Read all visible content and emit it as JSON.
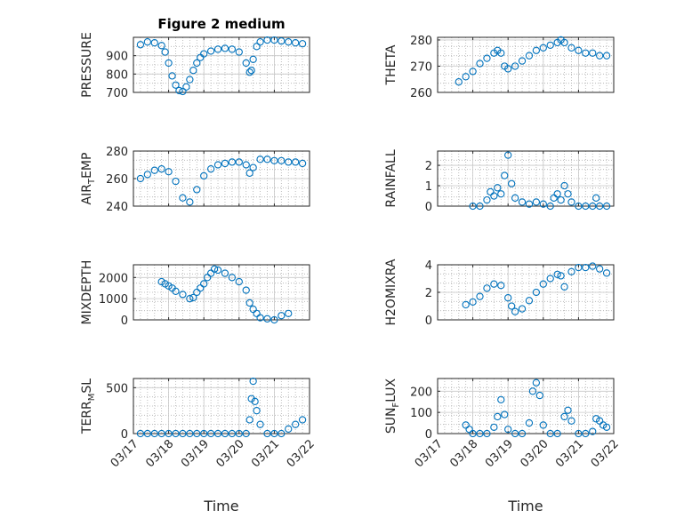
{
  "chart_data": [
    {
      "type": "scatter",
      "title": "Figure 2 medium",
      "ylabel": "PRESSURE",
      "ylim": [
        700,
        1000
      ],
      "yticks": [
        700,
        800,
        900
      ],
      "yticklabels": [
        "700",
        "800",
        "900"
      ],
      "xlim": [
        0,
        5
      ],
      "series": [
        {
          "x": [
            0.2,
            0.4,
            0.6,
            0.8,
            0.9,
            1.0,
            1.1,
            1.2,
            1.3,
            1.4,
            1.5,
            1.6,
            1.7,
            1.8,
            1.9,
            2.0,
            2.2,
            2.4,
            2.6,
            2.8,
            3.0,
            3.2,
            3.3,
            3.35,
            3.4,
            3.5,
            3.6,
            3.8,
            4.0,
            4.2,
            4.4,
            4.6,
            4.8
          ],
          "y": [
            960,
            975,
            970,
            955,
            920,
            860,
            790,
            740,
            710,
            705,
            730,
            770,
            820,
            860,
            890,
            910,
            925,
            935,
            940,
            935,
            920,
            860,
            810,
            820,
            880,
            950,
            975,
            985,
            985,
            980,
            975,
            970,
            965
          ]
        }
      ]
    },
    {
      "type": "scatter",
      "ylabel": "THETA",
      "ylim": [
        260,
        281
      ],
      "yticks": [
        260,
        270,
        280
      ],
      "yticklabels": [
        "260",
        "270",
        "280"
      ],
      "xlim": [
        0,
        5
      ],
      "series": [
        {
          "x": [
            0.6,
            0.8,
            1.0,
            1.2,
            1.4,
            1.6,
            1.7,
            1.8,
            1.9,
            2.0,
            2.2,
            2.4,
            2.6,
            2.8,
            3.0,
            3.2,
            3.4,
            3.5,
            3.6,
            3.8,
            4.0,
            4.2,
            4.4,
            4.6,
            4.8
          ],
          "y": [
            264,
            266,
            268,
            271,
            273,
            275,
            276,
            275,
            270,
            269,
            270,
            272,
            274,
            276,
            277,
            278,
            279,
            280,
            279,
            277,
            276,
            275,
            275,
            274,
            274
          ]
        }
      ]
    },
    {
      "type": "scatter",
      "ylabel": "AIR_TEMP",
      "ylim": [
        240,
        280
      ],
      "yticks": [
        240,
        260,
        280
      ],
      "yticklabels": [
        "240",
        "260",
        "280"
      ],
      "xlim": [
        0,
        5
      ],
      "series": [
        {
          "x": [
            0.2,
            0.4,
            0.6,
            0.8,
            1.0,
            1.2,
            1.4,
            1.6,
            1.8,
            2.0,
            2.2,
            2.4,
            2.6,
            2.8,
            3.0,
            3.2,
            3.3,
            3.4,
            3.6,
            3.8,
            4.0,
            4.2,
            4.4,
            4.6,
            4.8
          ],
          "y": [
            260,
            263,
            266,
            267,
            265,
            258,
            246,
            243,
            252,
            262,
            267,
            270,
            271,
            272,
            272,
            270,
            264,
            268,
            274,
            274,
            273,
            273,
            272,
            272,
            271
          ]
        }
      ]
    },
    {
      "type": "scatter",
      "ylabel": "RAINFALL",
      "ylim": [
        0,
        2.7
      ],
      "yticks": [
        0,
        1,
        2
      ],
      "yticklabels": [
        "0",
        "1",
        "2"
      ],
      "xlim": [
        0,
        5
      ],
      "series": [
        {
          "x": [
            1.0,
            1.2,
            1.4,
            1.5,
            1.6,
            1.7,
            1.8,
            1.9,
            2.0,
            2.1,
            2.2,
            2.4,
            2.6,
            2.8,
            3.0,
            3.2,
            3.3,
            3.4,
            3.5,
            3.6,
            3.7,
            3.8,
            4.0,
            4.2,
            4.4,
            4.5,
            4.6,
            4.8
          ],
          "y": [
            0,
            0,
            0.3,
            0.7,
            0.5,
            0.9,
            0.6,
            1.5,
            2.5,
            1.1,
            0.4,
            0.2,
            0.1,
            0.2,
            0.1,
            0,
            0.4,
            0.6,
            0.3,
            1.0,
            0.6,
            0.2,
            0,
            0,
            0,
            0.4,
            0,
            0
          ]
        }
      ]
    },
    {
      "type": "scatter",
      "ylabel": "MIXDEPTH",
      "ylim": [
        0,
        2600
      ],
      "yticks": [
        0,
        1000,
        2000
      ],
      "yticklabels": [
        "0",
        "1000",
        "2000"
      ],
      "xlim": [
        0,
        5
      ],
      "series": [
        {
          "x": [
            0.8,
            0.9,
            1.0,
            1.1,
            1.2,
            1.4,
            1.6,
            1.7,
            1.8,
            1.9,
            2.0,
            2.1,
            2.2,
            2.3,
            2.4,
            2.6,
            2.8,
            3.0,
            3.2,
            3.3,
            3.4,
            3.5,
            3.6,
            3.8,
            4.0,
            4.2,
            4.4
          ],
          "y": [
            1800,
            1700,
            1600,
            1500,
            1350,
            1200,
            1000,
            1050,
            1300,
            1500,
            1700,
            2000,
            2200,
            2400,
            2350,
            2200,
            2000,
            1800,
            1400,
            800,
            500,
            300,
            100,
            50,
            0,
            200,
            300
          ]
        }
      ]
    },
    {
      "type": "scatter",
      "ylabel": "H2OMIXRA",
      "ylim": [
        0,
        4
      ],
      "yticks": [
        0,
        2,
        4
      ],
      "yticklabels": [
        "0",
        "2",
        "4"
      ],
      "xlim": [
        0,
        5
      ],
      "series": [
        {
          "x": [
            0.8,
            1.0,
            1.2,
            1.4,
            1.6,
            1.8,
            2.0,
            2.1,
            2.2,
            2.4,
            2.6,
            2.8,
            3.0,
            3.2,
            3.4,
            3.5,
            3.6,
            3.8,
            4.0,
            4.2,
            4.4,
            4.6,
            4.8
          ],
          "y": [
            1.1,
            1.3,
            1.7,
            2.3,
            2.6,
            2.5,
            1.6,
            1.0,
            0.6,
            0.8,
            1.4,
            2.0,
            2.6,
            3.0,
            3.3,
            3.2,
            2.4,
            3.5,
            3.8,
            3.8,
            3.9,
            3.7,
            3.4
          ]
        }
      ]
    },
    {
      "type": "scatter",
      "ylabel": "TERR_MSL",
      "ylim": [
        0,
        600
      ],
      "yticks": [
        0,
        500
      ],
      "yticklabels": [
        "0",
        "500"
      ],
      "xlim": [
        0,
        5
      ],
      "series": [
        {
          "x": [
            0.2,
            0.4,
            0.6,
            0.8,
            1.0,
            1.2,
            1.4,
            1.6,
            1.8,
            2.0,
            2.2,
            2.4,
            2.6,
            2.8,
            3.0,
            3.2,
            3.3,
            3.35,
            3.4,
            3.45,
            3.5,
            3.6,
            3.8,
            4.0,
            4.2,
            4.4,
            4.6,
            4.8
          ],
          "y": [
            0,
            0,
            0,
            0,
            0,
            0,
            0,
            0,
            0,
            0,
            0,
            0,
            0,
            0,
            0,
            0,
            150,
            380,
            570,
            350,
            250,
            100,
            0,
            0,
            0,
            50,
            100,
            150
          ]
        }
      ]
    },
    {
      "type": "scatter",
      "ylabel": "SUN_FLUX",
      "ylim": [
        0,
        260
      ],
      "yticks": [
        0,
        100,
        200
      ],
      "yticklabels": [
        "0",
        "100",
        "200"
      ],
      "xlim": [
        0,
        5
      ],
      "series": [
        {
          "x": [
            0.8,
            0.9,
            1.0,
            1.2,
            1.4,
            1.6,
            1.7,
            1.8,
            1.9,
            2.0,
            2.2,
            2.4,
            2.6,
            2.7,
            2.8,
            2.9,
            3.0,
            3.2,
            3.4,
            3.6,
            3.7,
            3.8,
            4.0,
            4.2,
            4.4,
            4.5,
            4.6,
            4.7,
            4.8
          ],
          "y": [
            40,
            20,
            0,
            0,
            0,
            30,
            80,
            160,
            90,
            20,
            0,
            0,
            50,
            200,
            240,
            180,
            40,
            0,
            0,
            80,
            110,
            60,
            0,
            0,
            10,
            70,
            60,
            40,
            30
          ]
        }
      ]
    }
  ],
  "xaxis": {
    "label": "Time",
    "ticks": [
      0,
      1,
      2,
      3,
      4,
      5
    ],
    "ticklabels": [
      "03/17",
      "03/18",
      "03/19",
      "03/20",
      "03/21",
      "03/22"
    ]
  },
  "colors": {
    "marker": "#0072BD",
    "axis": "#262626"
  }
}
